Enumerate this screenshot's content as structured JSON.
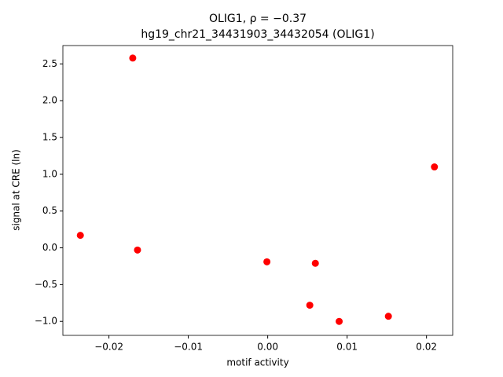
{
  "chart_data": {
    "type": "scatter",
    "title": "OLIG1, ρ = −0.37",
    "subtitle": "hg19_chr21_34431903_34432054 (OLIG1)",
    "x_label": "motif activity",
    "y_label": "signal at CRE (ln)",
    "color": "#ff0000",
    "x": [
      -0.0236,
      -0.017,
      -0.0164,
      -0.0001,
      0.006,
      0.0053,
      0.009,
      0.0152,
      0.021
    ],
    "values": [
      0.17,
      2.58,
      -0.03,
      -0.19,
      -0.21,
      -0.78,
      -1.0,
      -0.93,
      1.1
    ],
    "xlim": [
      -0.0258,
      0.0233
    ],
    "ylim": [
      -1.19,
      2.75
    ],
    "xticks": [
      {
        "value": -0.02,
        "label": "−0.02"
      },
      {
        "value": -0.01,
        "label": "−0.01"
      },
      {
        "value": 0,
        "label": "0.00"
      },
      {
        "value": 0.01,
        "label": "0.01"
      },
      {
        "value": 0.02,
        "label": "0.02"
      }
    ],
    "yticks": [
      {
        "value": -1,
        "label": "−1.0"
      },
      {
        "value": -0.5,
        "label": "−0.5"
      },
      {
        "value": 0,
        "label": "0.0"
      },
      0.5,
      {
        "value": 1,
        "label": "1.0"
      },
      1.5,
      {
        "value": 2,
        "label": "2.0"
      },
      2.5
    ]
  }
}
